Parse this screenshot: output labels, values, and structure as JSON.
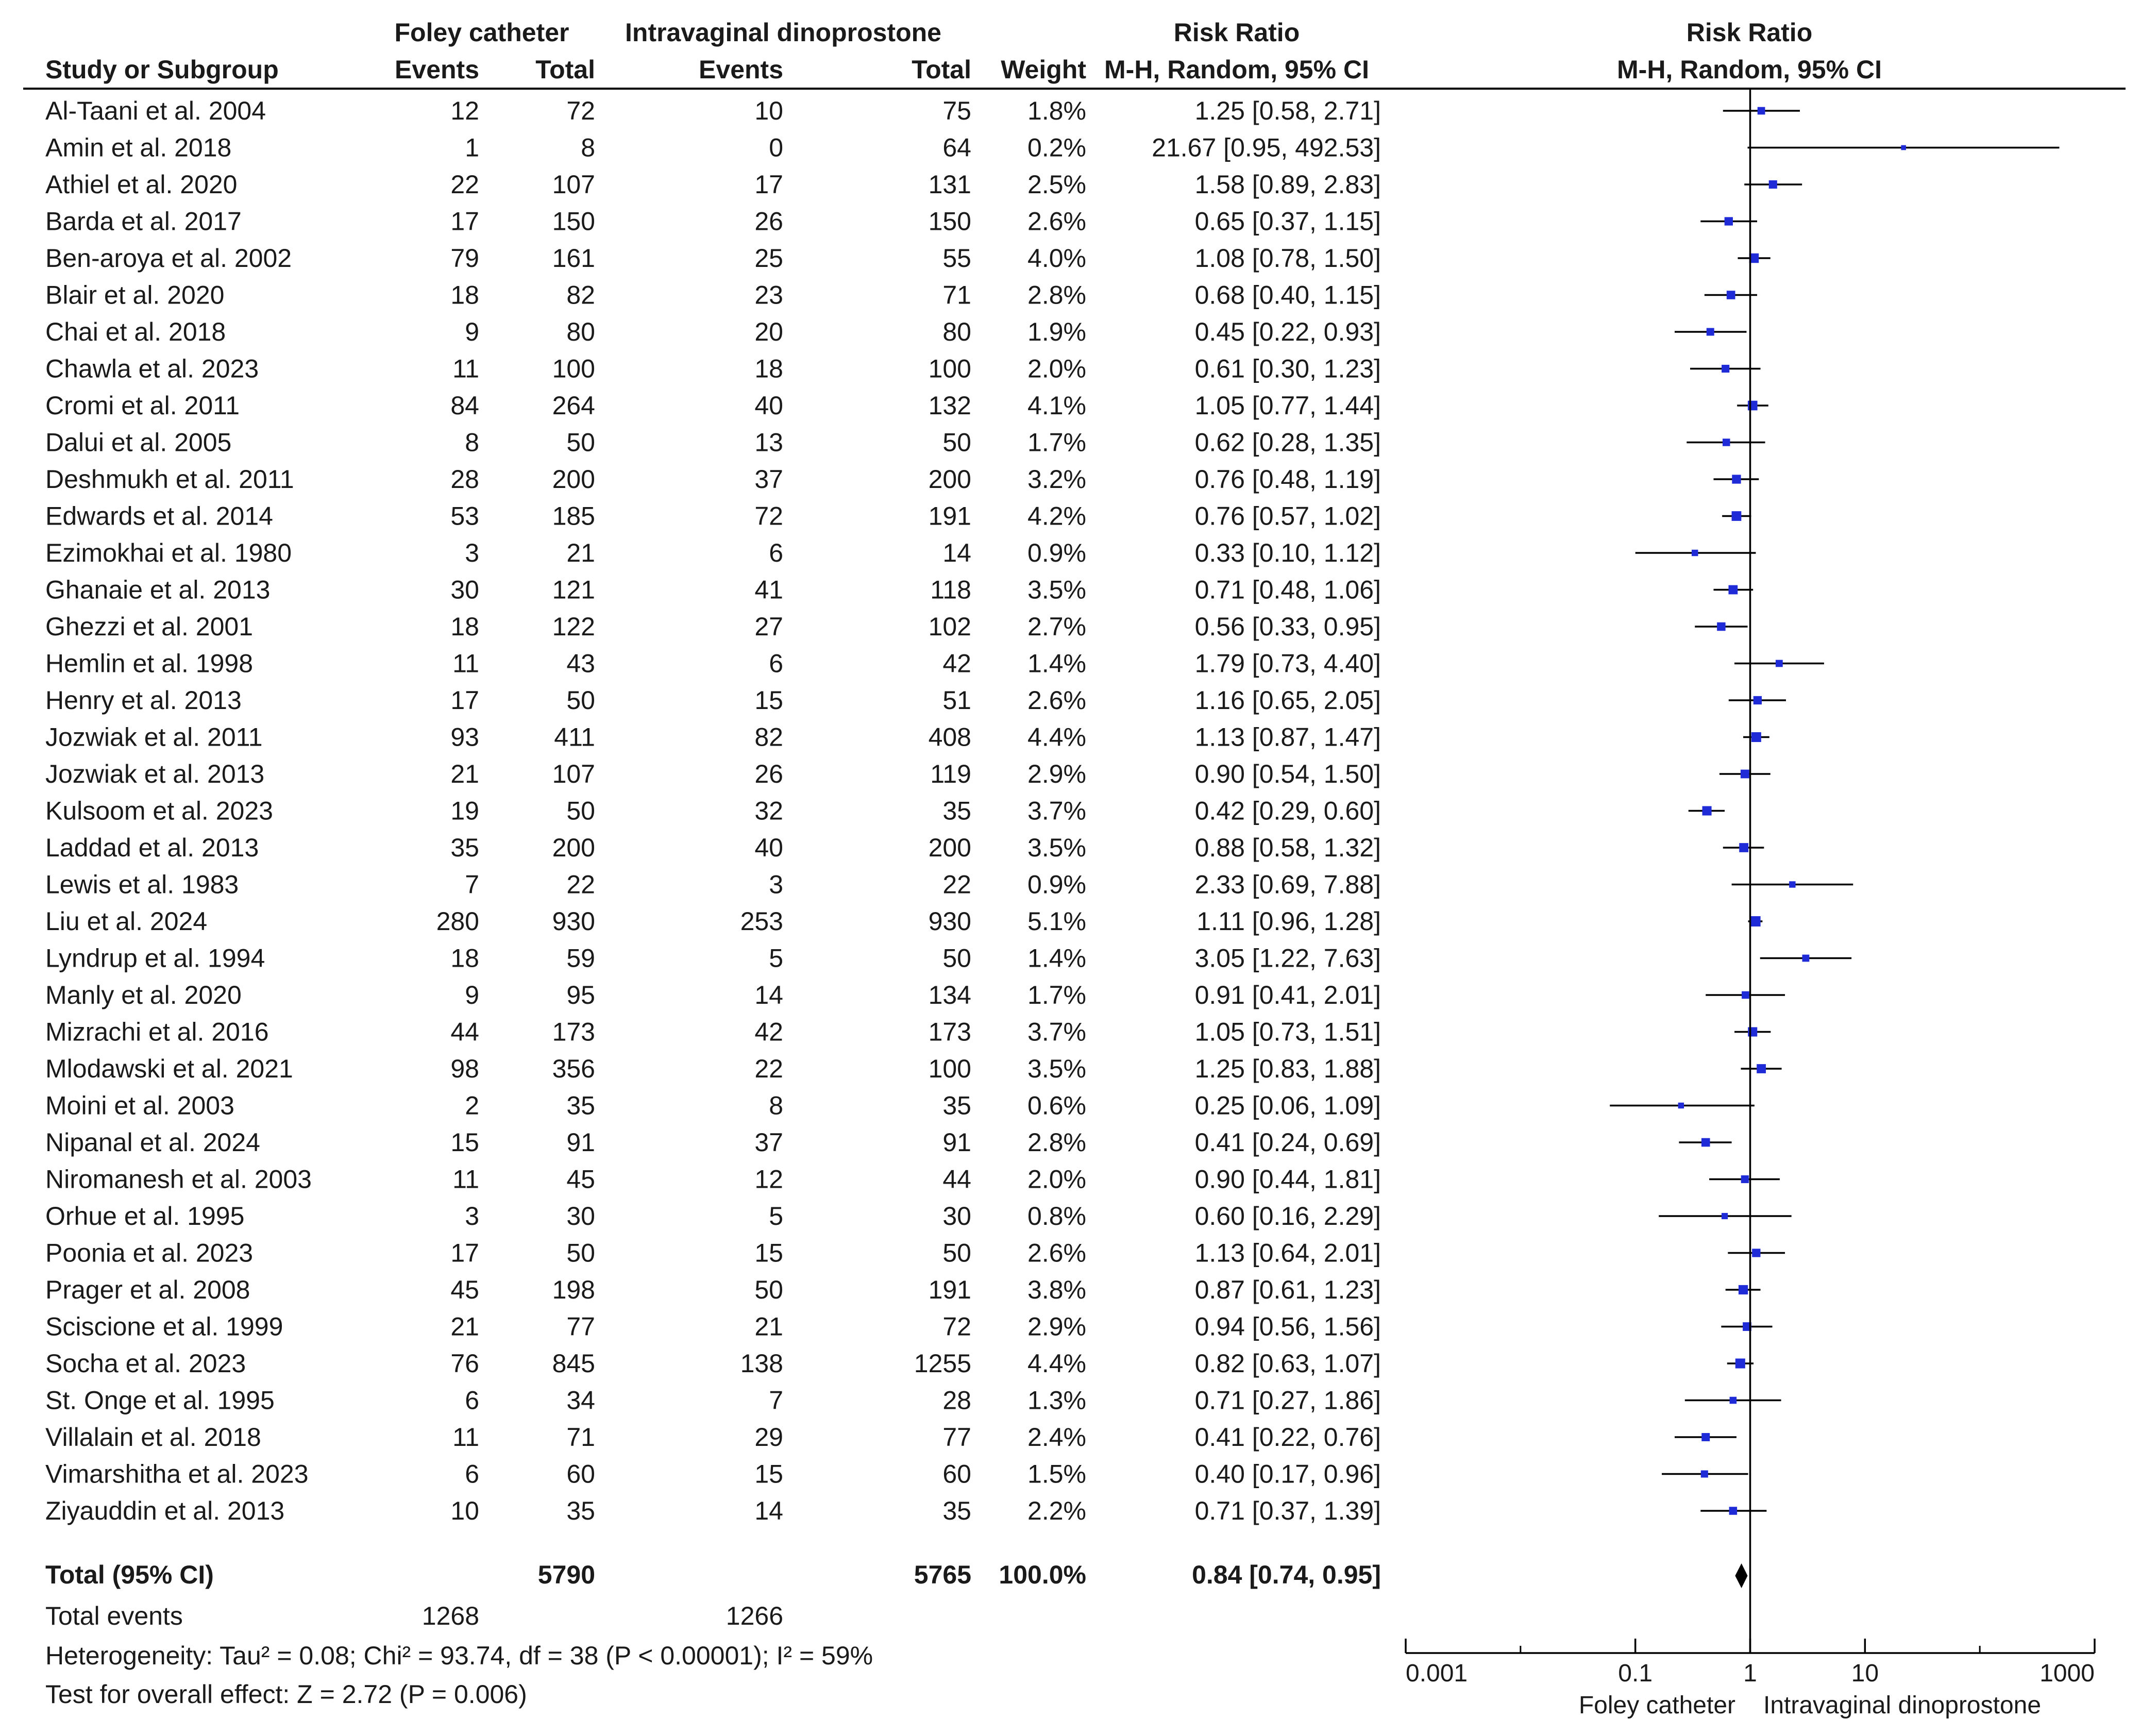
{
  "chart_data": {
    "type": "forest",
    "x_scale": "log",
    "xlim": [
      0.001,
      1000
    ],
    "reference_value": 1,
    "header": {
      "group1": "Foley catheter",
      "group2": "Intravaginal dinoprostone",
      "study_col": "Study or Subgroup",
      "events": "Events",
      "total": "Total",
      "weight": "Weight",
      "effect_title": "Risk Ratio",
      "effect_method": "M-H, Random, 95% CI"
    },
    "studies": [
      {
        "name": "Al-Taani et al. 2004",
        "e1": "12",
        "n1": "72",
        "e2": "10",
        "n2": "75",
        "weight": "1.8%",
        "ci_text": "1.25 [0.58, 2.71]",
        "rr": 1.25,
        "lo": 0.58,
        "hi": 2.71,
        "w": 1.8
      },
      {
        "name": "Amin et al. 2018",
        "e1": "1",
        "n1": "8",
        "e2": "0",
        "n2": "64",
        "weight": "0.2%",
        "ci_text": "21.67 [0.95, 492.53]",
        "rr": 21.67,
        "lo": 0.95,
        "hi": 492.53,
        "w": 0.2
      },
      {
        "name": "Athiel et al. 2020",
        "e1": "22",
        "n1": "107",
        "e2": "17",
        "n2": "131",
        "weight": "2.5%",
        "ci_text": "1.58 [0.89, 2.83]",
        "rr": 1.58,
        "lo": 0.89,
        "hi": 2.83,
        "w": 2.5
      },
      {
        "name": "Barda et al. 2017",
        "e1": "17",
        "n1": "150",
        "e2": "26",
        "n2": "150",
        "weight": "2.6%",
        "ci_text": "0.65 [0.37, 1.15]",
        "rr": 0.65,
        "lo": 0.37,
        "hi": 1.15,
        "w": 2.6
      },
      {
        "name": "Ben-aroya et al. 2002",
        "e1": "79",
        "n1": "161",
        "e2": "25",
        "n2": "55",
        "weight": "4.0%",
        "ci_text": "1.08 [0.78, 1.50]",
        "rr": 1.08,
        "lo": 0.78,
        "hi": 1.5,
        "w": 4.0
      },
      {
        "name": "Blair et al. 2020",
        "e1": "18",
        "n1": "82",
        "e2": "23",
        "n2": "71",
        "weight": "2.8%",
        "ci_text": "0.68 [0.40, 1.15]",
        "rr": 0.68,
        "lo": 0.4,
        "hi": 1.15,
        "w": 2.8
      },
      {
        "name": "Chai et al. 2018",
        "e1": "9",
        "n1": "80",
        "e2": "20",
        "n2": "80",
        "weight": "1.9%",
        "ci_text": "0.45 [0.22, 0.93]",
        "rr": 0.45,
        "lo": 0.22,
        "hi": 0.93,
        "w": 1.9
      },
      {
        "name": "Chawla et al.  2023",
        "e1": "11",
        "n1": "100",
        "e2": "18",
        "n2": "100",
        "weight": "2.0%",
        "ci_text": "0.61 [0.30, 1.23]",
        "rr": 0.61,
        "lo": 0.3,
        "hi": 1.23,
        "w": 2.0
      },
      {
        "name": "Cromi et al. 2011",
        "e1": "84",
        "n1": "264",
        "e2": "40",
        "n2": "132",
        "weight": "4.1%",
        "ci_text": "1.05 [0.77, 1.44]",
        "rr": 1.05,
        "lo": 0.77,
        "hi": 1.44,
        "w": 4.1
      },
      {
        "name": "Dalui et al. 2005",
        "e1": "8",
        "n1": "50",
        "e2": "13",
        "n2": "50",
        "weight": "1.7%",
        "ci_text": "0.62 [0.28, 1.35]",
        "rr": 0.62,
        "lo": 0.28,
        "hi": 1.35,
        "w": 1.7
      },
      {
        "name": "Deshmukh et al. 2011",
        "e1": "28",
        "n1": "200",
        "e2": "37",
        "n2": "200",
        "weight": "3.2%",
        "ci_text": "0.76 [0.48, 1.19]",
        "rr": 0.76,
        "lo": 0.48,
        "hi": 1.19,
        "w": 3.2
      },
      {
        "name": "Edwards et al. 2014",
        "e1": "53",
        "n1": "185",
        "e2": "72",
        "n2": "191",
        "weight": "4.2%",
        "ci_text": "0.76 [0.57, 1.02]",
        "rr": 0.76,
        "lo": 0.57,
        "hi": 1.02,
        "w": 4.2
      },
      {
        "name": "Ezimokhai et al. 1980",
        "e1": "3",
        "n1": "21",
        "e2": "6",
        "n2": "14",
        "weight": "0.9%",
        "ci_text": "0.33 [0.10, 1.12]",
        "rr": 0.33,
        "lo": 0.1,
        "hi": 1.12,
        "w": 0.9
      },
      {
        "name": "Ghanaie et al. 2013",
        "e1": "30",
        "n1": "121",
        "e2": "41",
        "n2": "118",
        "weight": "3.5%",
        "ci_text": "0.71 [0.48, 1.06]",
        "rr": 0.71,
        "lo": 0.48,
        "hi": 1.06,
        "w": 3.5
      },
      {
        "name": "Ghezzi et al. 2001",
        "e1": "18",
        "n1": "122",
        "e2": "27",
        "n2": "102",
        "weight": "2.7%",
        "ci_text": "0.56 [0.33, 0.95]",
        "rr": 0.56,
        "lo": 0.33,
        "hi": 0.95,
        "w": 2.7
      },
      {
        "name": "Hemlin et al. 1998",
        "e1": "11",
        "n1": "43",
        "e2": "6",
        "n2": "42",
        "weight": "1.4%",
        "ci_text": "1.79 [0.73, 4.40]",
        "rr": 1.79,
        "lo": 0.73,
        "hi": 4.4,
        "w": 1.4
      },
      {
        "name": "Henry et al. 2013",
        "e1": "17",
        "n1": "50",
        "e2": "15",
        "n2": "51",
        "weight": "2.6%",
        "ci_text": "1.16 [0.65, 2.05]",
        "rr": 1.16,
        "lo": 0.65,
        "hi": 2.05,
        "w": 2.6
      },
      {
        "name": "Jozwiak et al. 2011",
        "e1": "93",
        "n1": "411",
        "e2": "82",
        "n2": "408",
        "weight": "4.4%",
        "ci_text": "1.13 [0.87, 1.47]",
        "rr": 1.13,
        "lo": 0.87,
        "hi": 1.47,
        "w": 4.4
      },
      {
        "name": "Jozwiak et al. 2013",
        "e1": "21",
        "n1": "107",
        "e2": "26",
        "n2": "119",
        "weight": "2.9%",
        "ci_text": "0.90 [0.54, 1.50]",
        "rr": 0.9,
        "lo": 0.54,
        "hi": 1.5,
        "w": 2.9
      },
      {
        "name": "Kulsoom et al. 2023",
        "e1": "19",
        "n1": "50",
        "e2": "32",
        "n2": "35",
        "weight": "3.7%",
        "ci_text": "0.42 [0.29, 0.60]",
        "rr": 0.42,
        "lo": 0.29,
        "hi": 0.6,
        "w": 3.7
      },
      {
        "name": "Laddad et al. 2013",
        "e1": "35",
        "n1": "200",
        "e2": "40",
        "n2": "200",
        "weight": "3.5%",
        "ci_text": "0.88 [0.58, 1.32]",
        "rr": 0.88,
        "lo": 0.58,
        "hi": 1.32,
        "w": 3.5
      },
      {
        "name": "Lewis et al. 1983",
        "e1": "7",
        "n1": "22",
        "e2": "3",
        "n2": "22",
        "weight": "0.9%",
        "ci_text": "2.33 [0.69, 7.88]",
        "rr": 2.33,
        "lo": 0.69,
        "hi": 7.88,
        "w": 0.9
      },
      {
        "name": "Liu et al. 2024",
        "e1": "280",
        "n1": "930",
        "e2": "253",
        "n2": "930",
        "weight": "5.1%",
        "ci_text": "1.11 [0.96, 1.28]",
        "rr": 1.11,
        "lo": 0.96,
        "hi": 1.28,
        "w": 5.1
      },
      {
        "name": "Lyndrup et al. 1994",
        "e1": "18",
        "n1": "59",
        "e2": "5",
        "n2": "50",
        "weight": "1.4%",
        "ci_text": "3.05 [1.22, 7.63]",
        "rr": 3.05,
        "lo": 1.22,
        "hi": 7.63,
        "w": 1.4
      },
      {
        "name": "Manly et al. 2020",
        "e1": "9",
        "n1": "95",
        "e2": "14",
        "n2": "134",
        "weight": "1.7%",
        "ci_text": "0.91 [0.41, 2.01]",
        "rr": 0.91,
        "lo": 0.41,
        "hi": 2.01,
        "w": 1.7
      },
      {
        "name": "Mizrachi et al. 2016",
        "e1": "44",
        "n1": "173",
        "e2": "42",
        "n2": "173",
        "weight": "3.7%",
        "ci_text": "1.05 [0.73, 1.51]",
        "rr": 1.05,
        "lo": 0.73,
        "hi": 1.51,
        "w": 3.7
      },
      {
        "name": "Mlodawski et al. 2021",
        "e1": "98",
        "n1": "356",
        "e2": "22",
        "n2": "100",
        "weight": "3.5%",
        "ci_text": "1.25 [0.83, 1.88]",
        "rr": 1.25,
        "lo": 0.83,
        "hi": 1.88,
        "w": 3.5
      },
      {
        "name": "Moini et al. 2003",
        "e1": "2",
        "n1": "35",
        "e2": "8",
        "n2": "35",
        "weight": "0.6%",
        "ci_text": "0.25 [0.06, 1.09]",
        "rr": 0.25,
        "lo": 0.06,
        "hi": 1.09,
        "w": 0.6
      },
      {
        "name": "Nipanal et al. 2024",
        "e1": "15",
        "n1": "91",
        "e2": "37",
        "n2": "91",
        "weight": "2.8%",
        "ci_text": "0.41 [0.24, 0.69]",
        "rr": 0.41,
        "lo": 0.24,
        "hi": 0.69,
        "w": 2.8
      },
      {
        "name": "Niromanesh et al. 2003",
        "e1": "11",
        "n1": "45",
        "e2": "12",
        "n2": "44",
        "weight": "2.0%",
        "ci_text": "0.90 [0.44, 1.81]",
        "rr": 0.9,
        "lo": 0.44,
        "hi": 1.81,
        "w": 2.0
      },
      {
        "name": "Orhue et al. 1995",
        "e1": "3",
        "n1": "30",
        "e2": "5",
        "n2": "30",
        "weight": "0.8%",
        "ci_text": "0.60 [0.16, 2.29]",
        "rr": 0.6,
        "lo": 0.16,
        "hi": 2.29,
        "w": 0.8
      },
      {
        "name": "Poonia et al. 2023",
        "e1": "17",
        "n1": "50",
        "e2": "15",
        "n2": "50",
        "weight": "2.6%",
        "ci_text": "1.13 [0.64, 2.01]",
        "rr": 1.13,
        "lo": 0.64,
        "hi": 2.01,
        "w": 2.6
      },
      {
        "name": "Prager et al. 2008",
        "e1": "45",
        "n1": "198",
        "e2": "50",
        "n2": "191",
        "weight": "3.8%",
        "ci_text": "0.87 [0.61, 1.23]",
        "rr": 0.87,
        "lo": 0.61,
        "hi": 1.23,
        "w": 3.8
      },
      {
        "name": "Sciscione et al. 1999",
        "e1": "21",
        "n1": "77",
        "e2": "21",
        "n2": "72",
        "weight": "2.9%",
        "ci_text": "0.94 [0.56, 1.56]",
        "rr": 0.94,
        "lo": 0.56,
        "hi": 1.56,
        "w": 2.9
      },
      {
        "name": "Socha et al. 2023",
        "e1": "76",
        "n1": "845",
        "e2": "138",
        "n2": "1255",
        "weight": "4.4%",
        "ci_text": "0.82 [0.63, 1.07]",
        "rr": 0.82,
        "lo": 0.63,
        "hi": 1.07,
        "w": 4.4
      },
      {
        "name": "St. Onge et al. 1995",
        "e1": "6",
        "n1": "34",
        "e2": "7",
        "n2": "28",
        "weight": "1.3%",
        "ci_text": "0.71 [0.27, 1.86]",
        "rr": 0.71,
        "lo": 0.27,
        "hi": 1.86,
        "w": 1.3
      },
      {
        "name": "Villalain et al. 2018",
        "e1": "11",
        "n1": "71",
        "e2": "29",
        "n2": "77",
        "weight": "2.4%",
        "ci_text": "0.41 [0.22, 0.76]",
        "rr": 0.41,
        "lo": 0.22,
        "hi": 0.76,
        "w": 2.4
      },
      {
        "name": "Vimarshitha et al. 2023",
        "e1": "6",
        "n1": "60",
        "e2": "15",
        "n2": "60",
        "weight": "1.5%",
        "ci_text": "0.40 [0.17, 0.96]",
        "rr": 0.4,
        "lo": 0.17,
        "hi": 0.96,
        "w": 1.5
      },
      {
        "name": "Ziyauddin et al. 2013",
        "e1": "10",
        "n1": "35",
        "e2": "14",
        "n2": "35",
        "weight": "2.2%",
        "ci_text": "0.71 [0.37, 1.39]",
        "rr": 0.71,
        "lo": 0.37,
        "hi": 1.39,
        "w": 2.2
      }
    ],
    "total": {
      "label": "Total (95% CI)",
      "n1": "5790",
      "n2": "5765",
      "weight": "100.0%",
      "ci_text": "0.84 [0.74, 0.95]",
      "rr": 0.84,
      "lo": 0.74,
      "hi": 0.95
    },
    "total_events": {
      "label": "Total events",
      "e1": "1268",
      "e2": "1266"
    },
    "heterogeneity": "Heterogeneity: Tau² = 0.08; Chi² = 93.74, df = 38 (P < 0.00001); I² = 59%",
    "overall_effect": "Test for overall effect: Z = 2.72 (P = 0.006)",
    "axis_ticks": [
      "0.001",
      "0.1",
      "1",
      "10",
      "1000"
    ],
    "axis_tick_values": [
      0.001,
      0.1,
      1,
      10,
      1000
    ],
    "minor_tick_values": [
      0.01,
      100
    ],
    "favours_left": "Foley catheter",
    "favours_right": "Intravaginal dinoprostone",
    "colors": {
      "text": "#1a1a1a",
      "line": "#000000",
      "marker": "#1f2bd6"
    }
  }
}
